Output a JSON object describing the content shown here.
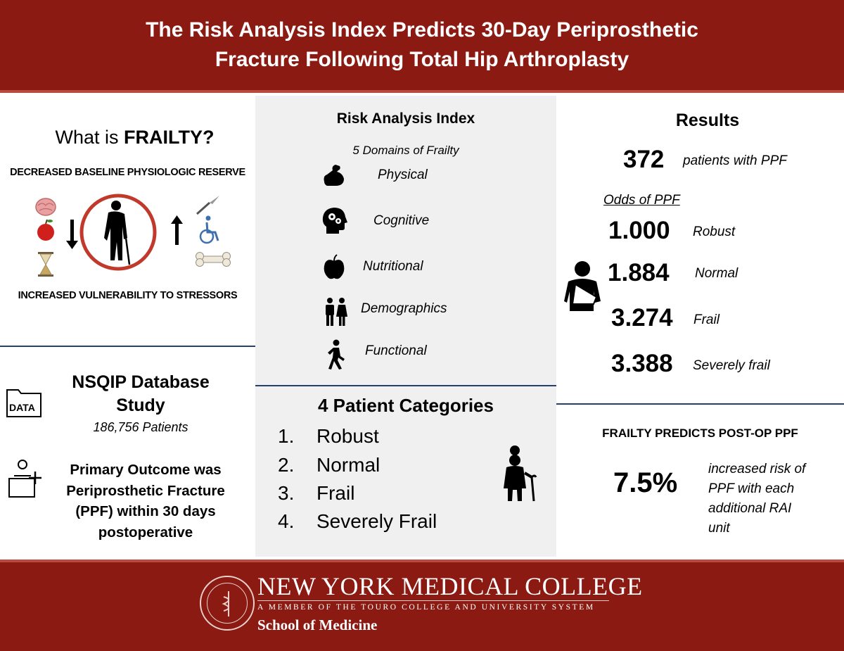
{
  "header": {
    "title_line1": "The Risk Analysis Index Predicts 30-Day Periprosthetic",
    "title_line2": "Fracture Following Total Hip Arthroplasty"
  },
  "frailty": {
    "heading_prefix": "What is ",
    "heading_bold": "FRAILTY?",
    "top_label": "DECREASED BASELINE PHYSIOLOGIC RESERVE",
    "bottom_label": "INCREASED VULNERABILITY TO STRESSORS"
  },
  "study": {
    "title_line1": "NSQIP Database",
    "title_line2": "Study",
    "data_icon_text": "DATA",
    "patients": "186,756 Patients",
    "outcome_lines": [
      "Primary Outcome was",
      "Periprosthetic Fracture",
      "(PPF) within 30 days",
      "postoperative"
    ]
  },
  "rai": {
    "title": "Risk Analysis Index",
    "subtitle": "5 Domains of Frailty",
    "domains": [
      {
        "label": "Physical",
        "icon": "flexed-arm-icon"
      },
      {
        "label": "Cognitive",
        "icon": "head-gears-icon"
      },
      {
        "label": "Nutritional",
        "icon": "apple-icon"
      },
      {
        "label": "Demographics",
        "icon": "people-icon"
      },
      {
        "label": "Functional",
        "icon": "walking-person-icon"
      }
    ]
  },
  "categories": {
    "title": "4 Patient Categories",
    "items": [
      {
        "num": "1.",
        "label": "Robust"
      },
      {
        "num": "2.",
        "label": "Normal"
      },
      {
        "num": "3.",
        "label": "Frail"
      },
      {
        "num": "4.",
        "label": "Severely Frail"
      }
    ]
  },
  "results": {
    "title": "Results",
    "count": "372",
    "count_label": "patients with PPF",
    "odds_heading": "Odds of PPF",
    "odds": [
      {
        "value": "1.000",
        "label": "Robust"
      },
      {
        "value": "1.884",
        "label": "Normal"
      },
      {
        "value": "3.274",
        "label": "Frail"
      },
      {
        "value": "3.388",
        "label": "Severely frail"
      }
    ]
  },
  "predicts": {
    "title": "FRAILTY PREDICTS POST-OP PPF",
    "value": "7.5%",
    "desc_lines": [
      "increased risk of",
      "PPF with each",
      "additional RAI",
      "unit"
    ]
  },
  "footer": {
    "college": "NEW YORK MEDICAL COLLEGE",
    "member": "A MEMBER OF THE TOURO COLLEGE AND UNIVERSITY SYSTEM",
    "school": "School of Medicine"
  },
  "colors": {
    "brand_red": "#8b1a12",
    "divider_blue": "#24406e",
    "circle_red": "#c0392b"
  }
}
